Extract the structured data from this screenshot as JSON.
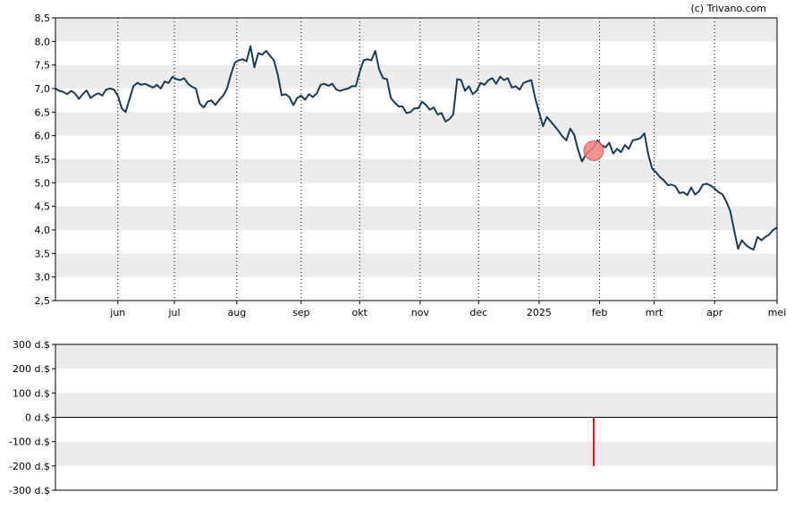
{
  "copyright": "(c) Trivano.com",
  "chart_data": [
    {
      "type": "line",
      "series": [
        {
          "values": [
            [
              0,
              7.0
            ],
            [
              2,
              6.95
            ],
            [
              4,
              6.93
            ],
            [
              6,
              6.88
            ],
            [
              8,
              6.95
            ],
            [
              10,
              6.9
            ],
            [
              12,
              6.78
            ],
            [
              14,
              6.88
            ],
            [
              16,
              6.96
            ],
            [
              18,
              6.8
            ],
            [
              20,
              6.86
            ],
            [
              22,
              6.9
            ],
            [
              24,
              6.85
            ],
            [
              26,
              6.98
            ],
            [
              28,
              7.0
            ],
            [
              30,
              6.98
            ],
            [
              32,
              6.85
            ],
            [
              34,
              6.58
            ],
            [
              36,
              6.5
            ],
            [
              38,
              6.78
            ],
            [
              40,
              7.05
            ],
            [
              42,
              7.12
            ],
            [
              44,
              7.08
            ],
            [
              46,
              7.1
            ],
            [
              48,
              7.06
            ],
            [
              50,
              7.02
            ],
            [
              52,
              7.08
            ],
            [
              54,
              7.0
            ],
            [
              56,
              7.15
            ],
            [
              58,
              7.12
            ],
            [
              60,
              7.25
            ],
            [
              62,
              7.2
            ],
            [
              64,
              7.18
            ],
            [
              66,
              7.22
            ],
            [
              68,
              7.1
            ],
            [
              70,
              7.04
            ],
            [
              72,
              7.0
            ],
            [
              74,
              6.68
            ],
            [
              76,
              6.6
            ],
            [
              78,
              6.72
            ],
            [
              80,
              6.75
            ],
            [
              82,
              6.65
            ],
            [
              84,
              6.76
            ],
            [
              86,
              6.85
            ],
            [
              88,
              7.0
            ],
            [
              90,
              7.3
            ],
            [
              92,
              7.55
            ],
            [
              94,
              7.6
            ],
            [
              96,
              7.62
            ],
            [
              98,
              7.58
            ],
            [
              100,
              7.9
            ],
            [
              102,
              7.45
            ],
            [
              104,
              7.75
            ],
            [
              106,
              7.72
            ],
            [
              108,
              7.8
            ],
            [
              110,
              7.7
            ],
            [
              112,
              7.6
            ],
            [
              114,
              7.3
            ],
            [
              116,
              6.86
            ],
            [
              118,
              6.88
            ],
            [
              120,
              6.82
            ],
            [
              122,
              6.65
            ],
            [
              124,
              6.8
            ],
            [
              126,
              6.85
            ],
            [
              128,
              6.76
            ],
            [
              130,
              6.88
            ],
            [
              132,
              6.82
            ],
            [
              134,
              6.9
            ],
            [
              136,
              7.08
            ],
            [
              138,
              7.1
            ],
            [
              140,
              7.06
            ],
            [
              142,
              7.1
            ],
            [
              144,
              6.98
            ],
            [
              146,
              6.95
            ],
            [
              148,
              6.98
            ],
            [
              150,
              7.0
            ],
            [
              152,
              7.05
            ],
            [
              154,
              7.05
            ],
            [
              156,
              7.35
            ],
            [
              158,
              7.6
            ],
            [
              160,
              7.62
            ],
            [
              162,
              7.6
            ],
            [
              164,
              7.8
            ],
            [
              166,
              7.4
            ],
            [
              168,
              7.22
            ],
            [
              170,
              7.2
            ],
            [
              172,
              6.8
            ],
            [
              174,
              6.7
            ],
            [
              176,
              6.62
            ],
            [
              178,
              6.62
            ],
            [
              180,
              6.48
            ],
            [
              182,
              6.5
            ],
            [
              184,
              6.58
            ],
            [
              186,
              6.58
            ],
            [
              188,
              6.72
            ],
            [
              190,
              6.65
            ],
            [
              192,
              6.55
            ],
            [
              194,
              6.6
            ],
            [
              196,
              6.45
            ],
            [
              198,
              6.48
            ],
            [
              200,
              6.3
            ],
            [
              202,
              6.35
            ],
            [
              204,
              6.45
            ],
            [
              206,
              7.2
            ],
            [
              208,
              7.18
            ],
            [
              210,
              6.95
            ],
            [
              212,
              7.05
            ],
            [
              214,
              6.88
            ],
            [
              216,
              6.95
            ],
            [
              218,
              7.12
            ],
            [
              220,
              7.08
            ],
            [
              222,
              7.18
            ],
            [
              224,
              7.22
            ],
            [
              226,
              7.1
            ],
            [
              228,
              7.25
            ],
            [
              230,
              7.18
            ],
            [
              232,
              7.22
            ],
            [
              234,
              7.02
            ],
            [
              236,
              7.05
            ],
            [
              238,
              6.98
            ],
            [
              240,
              7.12
            ],
            [
              242,
              7.15
            ],
            [
              244,
              7.18
            ],
            [
              246,
              6.8
            ],
            [
              248,
              6.5
            ],
            [
              250,
              6.2
            ],
            [
              252,
              6.4
            ],
            [
              254,
              6.3
            ],
            [
              256,
              6.2
            ],
            [
              258,
              6.1
            ],
            [
              260,
              5.98
            ],
            [
              262,
              5.9
            ],
            [
              264,
              6.15
            ],
            [
              266,
              6.02
            ],
            [
              268,
              5.7
            ],
            [
              270,
              5.45
            ],
            [
              272,
              5.6
            ],
            [
              274,
              5.68
            ],
            [
              276,
              5.75
            ],
            [
              278,
              5.9
            ],
            [
              280,
              5.8
            ],
            [
              282,
              5.75
            ],
            [
              284,
              5.85
            ],
            [
              286,
              5.62
            ],
            [
              288,
              5.72
            ],
            [
              290,
              5.65
            ],
            [
              292,
              5.8
            ],
            [
              294,
              5.72
            ],
            [
              296,
              5.9
            ],
            [
              298,
              5.92
            ],
            [
              300,
              5.95
            ],
            [
              302,
              6.05
            ],
            [
              304,
              5.6
            ],
            [
              306,
              5.3
            ],
            [
              308,
              5.22
            ],
            [
              310,
              5.12
            ],
            [
              312,
              5.05
            ],
            [
              314,
              4.95
            ],
            [
              316,
              4.96
            ],
            [
              318,
              4.92
            ],
            [
              320,
              4.78
            ],
            [
              322,
              4.8
            ],
            [
              324,
              4.74
            ],
            [
              326,
              4.9
            ],
            [
              328,
              4.75
            ],
            [
              330,
              4.82
            ],
            [
              332,
              4.96
            ],
            [
              334,
              4.98
            ],
            [
              336,
              4.94
            ],
            [
              338,
              4.88
            ],
            [
              340,
              4.8
            ],
            [
              342,
              4.76
            ],
            [
              344,
              4.6
            ],
            [
              346,
              4.4
            ],
            [
              348,
              4.0
            ],
            [
              350,
              3.6
            ],
            [
              352,
              3.78
            ],
            [
              354,
              3.68
            ],
            [
              356,
              3.62
            ],
            [
              358,
              3.58
            ],
            [
              360,
              3.85
            ],
            [
              362,
              3.78
            ],
            [
              364,
              3.85
            ],
            [
              366,
              3.9
            ],
            [
              368,
              4.0
            ],
            [
              370,
              4.05
            ]
          ],
          "color": "#1b3a57"
        }
      ],
      "x_tick_labels": [
        "jun",
        "jul",
        "aug",
        "sep",
        "okt",
        "nov",
        "dec",
        "2025",
        "feb",
        "mrt",
        "apr",
        "mei"
      ],
      "x_tick_positions": [
        32,
        61,
        93,
        126,
        156,
        187,
        217,
        248,
        279,
        307,
        338,
        370
      ],
      "xlim": [
        0,
        370
      ],
      "ylim": [
        2.5,
        8.5
      ],
      "y_ticks": [
        "2,5",
        "3,0",
        "3,5",
        "4,0",
        "4,5",
        "5,0",
        "5,5",
        "6,0",
        "6,5",
        "7,0",
        "7,5",
        "8,0",
        "8,5"
      ],
      "y_tick_values": [
        2.5,
        3.0,
        3.5,
        4.0,
        4.5,
        5.0,
        5.5,
        6.0,
        6.5,
        7.0,
        7.5,
        8.0,
        8.5
      ],
      "marker": {
        "x": 276,
        "y": 5.68,
        "color": "#f08080"
      },
      "grid": "alternating bands with dotted month lines"
    },
    {
      "type": "bar",
      "ylim": [
        -300,
        300
      ],
      "y_ticks": [
        "300 d.$",
        "200 d.$",
        "100 d.$",
        "0 d.$",
        "-100 d.$",
        "-200 d.$",
        "-300 d.$"
      ],
      "y_tick_values": [
        300,
        200,
        100,
        0,
        -100,
        -200,
        -300
      ],
      "bars": [
        {
          "x": 276,
          "value": -200,
          "color": "#e0001b"
        }
      ]
    }
  ]
}
